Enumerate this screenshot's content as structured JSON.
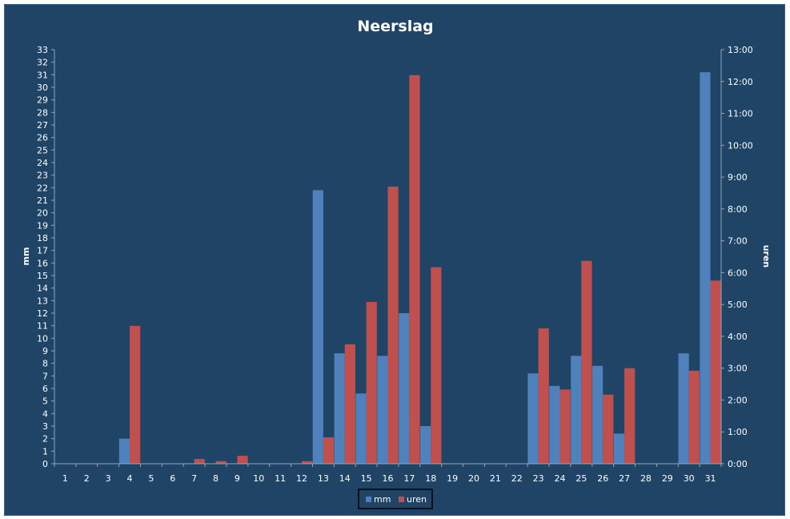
{
  "chart_data": {
    "type": "bar",
    "title": "Neerslag",
    "ylabel": "mm",
    "y2label": "uren",
    "categories": [
      "1",
      "2",
      "3",
      "4",
      "5",
      "6",
      "7",
      "8",
      "9",
      "10",
      "11",
      "12",
      "13",
      "14",
      "15",
      "16",
      "17",
      "18",
      "19",
      "20",
      "21",
      "22",
      "23",
      "24",
      "25",
      "26",
      "27",
      "28",
      "29",
      "30",
      "31"
    ],
    "ylim": [
      0,
      33
    ],
    "y2lim": [
      0,
      13
    ],
    "y_ticks": [
      "0",
      "1",
      "2",
      "3",
      "4",
      "5",
      "6",
      "7",
      "8",
      "9",
      "10",
      "11",
      "12",
      "13",
      "14",
      "15",
      "16",
      "17",
      "18",
      "19",
      "20",
      "21",
      "22",
      "23",
      "24",
      "25",
      "26",
      "27",
      "28",
      "29",
      "30",
      "31",
      "32",
      "33"
    ],
    "y2_ticks": [
      "0:00",
      "1:00",
      "2:00",
      "3:00",
      "4:00",
      "5:00",
      "6:00",
      "7:00",
      "8:00",
      "9:00",
      "10:00",
      "11:00",
      "12:00",
      "13:00"
    ],
    "series": [
      {
        "name": "mm",
        "axis": "left",
        "color": "#4f81bd",
        "values": [
          0,
          0,
          0,
          2.0,
          0,
          0,
          0,
          0,
          0,
          0,
          0,
          0,
          21.8,
          8.8,
          5.6,
          8.6,
          12.0,
          3.0,
          0,
          0,
          0,
          0,
          7.2,
          6.2,
          8.6,
          7.8,
          2.4,
          0,
          0,
          8.8,
          31.2
        ]
      },
      {
        "name": "uren",
        "axis": "right",
        "unit": "hours",
        "color": "#c0504d",
        "values": [
          0,
          0,
          0,
          4.33,
          0,
          0,
          0.15,
          0.08,
          0.25,
          0,
          0,
          0.08,
          0.83,
          3.75,
          5.08,
          8.7,
          12.2,
          6.17,
          0,
          0,
          0,
          0,
          4.25,
          2.33,
          6.37,
          2.17,
          3.0,
          0,
          0,
          2.92,
          5.75
        ]
      }
    ],
    "legend_position": "bottom",
    "grid": false
  }
}
